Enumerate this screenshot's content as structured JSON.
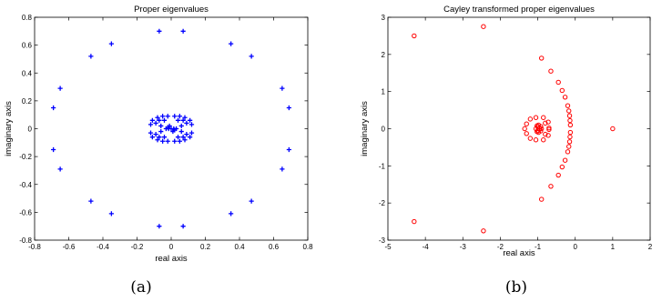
{
  "chart_data": [
    {
      "type": "scatter",
      "title": "Proper eigenvalues",
      "xlabel": "real axis",
      "ylabel": "imaginary axis",
      "xlim": [
        -0.8,
        0.8
      ],
      "ylim": [
        -0.8,
        0.8
      ],
      "xticks": [
        -0.8,
        -0.6,
        -0.4,
        -0.2,
        0,
        0.2,
        0.4,
        0.6,
        0.8
      ],
      "yticks": [
        -0.8,
        -0.6,
        -0.4,
        -0.2,
        0,
        0.2,
        0.4,
        0.6,
        0.8
      ],
      "xtick_labels": [
        "-0.8",
        "-0.6",
        "-0.4",
        "-0.2",
        "0",
        "0.2",
        "0.4",
        "0.6",
        "0.8"
      ],
      "ytick_labels": [
        "-0.8",
        "-0.6",
        "-0.4",
        "-0.2",
        "0",
        "0.2",
        "0.4",
        "0.6",
        "0.8"
      ],
      "marker": "+",
      "color": "#0000ff",
      "grid": false,
      "caption": "(a)",
      "points": [
        [
          -0.07,
          0.7
        ],
        [
          0.07,
          0.7
        ],
        [
          -0.07,
          -0.7
        ],
        [
          0.07,
          -0.7
        ],
        [
          -0.35,
          0.61
        ],
        [
          0.35,
          0.61
        ],
        [
          -0.35,
          -0.61
        ],
        [
          0.35,
          -0.61
        ],
        [
          -0.47,
          0.52
        ],
        [
          0.47,
          0.52
        ],
        [
          -0.47,
          -0.52
        ],
        [
          0.47,
          -0.52
        ],
        [
          -0.65,
          0.29
        ],
        [
          0.65,
          0.29
        ],
        [
          -0.65,
          -0.29
        ],
        [
          0.65,
          -0.29
        ],
        [
          -0.69,
          0.15
        ],
        [
          0.69,
          0.15
        ],
        [
          -0.69,
          -0.15
        ],
        [
          0.69,
          -0.15
        ],
        [
          -0.12,
          0.03
        ],
        [
          0.12,
          0.03
        ],
        [
          -0.12,
          -0.03
        ],
        [
          0.12,
          -0.03
        ],
        [
          -0.11,
          0.06
        ],
        [
          0.11,
          0.06
        ],
        [
          -0.11,
          -0.06
        ],
        [
          0.11,
          -0.06
        ],
        [
          -0.08,
          0.08
        ],
        [
          0.08,
          0.08
        ],
        [
          -0.08,
          -0.08
        ],
        [
          0.08,
          -0.08
        ],
        [
          -0.05,
          0.09
        ],
        [
          0.05,
          0.09
        ],
        [
          -0.05,
          -0.09
        ],
        [
          0.05,
          -0.09
        ],
        [
          -0.02,
          0.09
        ],
        [
          0.02,
          0.09
        ],
        [
          -0.02,
          -0.09
        ],
        [
          0.02,
          -0.09
        ],
        [
          -0.09,
          0.04
        ],
        [
          0.09,
          0.04
        ],
        [
          -0.09,
          -0.04
        ],
        [
          0.09,
          -0.04
        ],
        [
          -0.07,
          0.06
        ],
        [
          0.07,
          0.06
        ],
        [
          -0.07,
          -0.06
        ],
        [
          0.07,
          -0.06
        ],
        [
          -0.04,
          0.06
        ],
        [
          0.04,
          0.06
        ],
        [
          -0.04,
          -0.06
        ],
        [
          0.04,
          -0.06
        ],
        [
          -0.06,
          0.02
        ],
        [
          0.06,
          0.02
        ],
        [
          -0.06,
          -0.02
        ],
        [
          0.06,
          -0.02
        ],
        [
          -0.03,
          0.0
        ],
        [
          0.03,
          0.0
        ],
        [
          -0.02,
          0.01
        ],
        [
          0.02,
          -0.01
        ],
        [
          -0.01,
          0.02
        ],
        [
          0.01,
          -0.02
        ],
        [
          -0.015,
          0.0
        ],
        [
          0.015,
          0.0
        ],
        [
          0.0,
          0.0
        ]
      ]
    },
    {
      "type": "scatter",
      "title": "Cayley transformed proper eigenvalues",
      "xlabel": "real axis",
      "ylabel": "imaginary axis",
      "xlim": [
        -5,
        2
      ],
      "ylim": [
        -3,
        3
      ],
      "xticks": [
        -5,
        -4,
        -3,
        -2,
        -1,
        0,
        1,
        2
      ],
      "yticks": [
        -3,
        -2,
        -1,
        0,
        1,
        2,
        3
      ],
      "xtick_labels": [
        "-5",
        "-4",
        "-3",
        "-2",
        "-1",
        "0",
        "1",
        "2"
      ],
      "ytick_labels": [
        "-3",
        "-2",
        "-1",
        "0",
        "1",
        "2",
        "3"
      ],
      "marker": "o",
      "color": "#ff0000",
      "grid": false,
      "caption": "(b)",
      "points": [
        [
          -4.3,
          2.5
        ],
        [
          -4.3,
          -2.5
        ],
        [
          -2.45,
          2.75
        ],
        [
          -2.45,
          -2.75
        ],
        [
          -0.9,
          1.9
        ],
        [
          -0.9,
          -1.9
        ],
        [
          -0.65,
          1.55
        ],
        [
          -0.65,
          -1.55
        ],
        [
          -0.45,
          1.25
        ],
        [
          -0.45,
          -1.25
        ],
        [
          -0.35,
          1.03
        ],
        [
          -0.35,
          -1.03
        ],
        [
          -0.27,
          0.85
        ],
        [
          -0.27,
          -0.85
        ],
        [
          -0.2,
          0.62
        ],
        [
          -0.2,
          -0.62
        ],
        [
          -0.17,
          0.48
        ],
        [
          -0.17,
          -0.48
        ],
        [
          -0.15,
          0.35
        ],
        [
          -0.15,
          -0.35
        ],
        [
          -0.14,
          0.22
        ],
        [
          -0.14,
          -0.22
        ],
        [
          -0.13,
          0.1
        ],
        [
          -0.13,
          -0.1
        ],
        [
          1.0,
          0.0
        ],
        [
          -1.3,
          0.13
        ],
        [
          -1.3,
          -0.13
        ],
        [
          -1.2,
          0.26
        ],
        [
          -1.2,
          -0.26
        ],
        [
          -1.05,
          0.3
        ],
        [
          -1.05,
          -0.3
        ],
        [
          -0.85,
          0.3
        ],
        [
          -0.85,
          -0.3
        ],
        [
          -0.72,
          0.18
        ],
        [
          -0.72,
          -0.18
        ],
        [
          -0.7,
          0.02
        ],
        [
          -0.7,
          -0.02
        ],
        [
          -1.35,
          0.0
        ],
        [
          -0.8,
          0.15
        ],
        [
          -0.8,
          -0.15
        ],
        [
          -1.0,
          0.05
        ],
        [
          -0.95,
          0.0
        ],
        [
          -1.0,
          -0.05
        ],
        [
          -0.92,
          0.06
        ],
        [
          -0.92,
          -0.06
        ],
        [
          -1.05,
          0.0
        ],
        [
          -0.98,
          0.1
        ],
        [
          -0.98,
          -0.1
        ],
        [
          -0.9,
          0.0
        ],
        [
          -1.02,
          0.08
        ],
        [
          -1.02,
          -0.08
        ]
      ]
    }
  ]
}
